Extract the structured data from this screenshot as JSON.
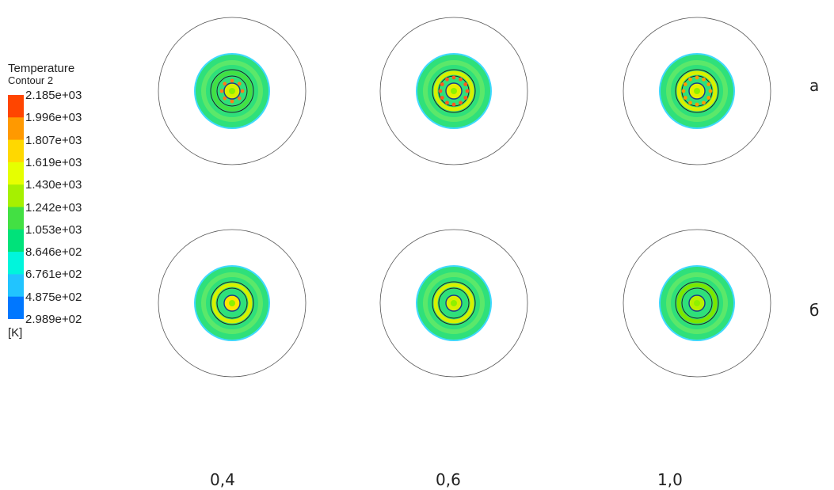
{
  "legend": {
    "title": "Temperature",
    "subtitle": "Contour 2",
    "unit": "[K]",
    "ticks": [
      "2.185e+03",
      "1.996e+03",
      "1.807e+03",
      "1.619e+03",
      "1.430e+03",
      "1.242e+03",
      "1.053e+03",
      "8.646e+02",
      "6.761e+02",
      "4.875e+02",
      "2.989e+02"
    ],
    "colors": [
      "#ff4500",
      "#ff9900",
      "#ffd800",
      "#e6ff00",
      "#a6f000",
      "#43e043",
      "#00e27a",
      "#00f5dc",
      "#21c4ff",
      "#0077ff",
      "#0019d6"
    ]
  },
  "rows": [
    {
      "label": "а"
    },
    {
      "label": "б"
    }
  ],
  "columns": [
    {
      "label": "0,4"
    },
    {
      "label": "0,6"
    },
    {
      "label": "1,0"
    }
  ],
  "plots": [
    {
      "id": "a-04",
      "hot": "speckled",
      "core": "#d8f000"
    },
    {
      "id": "a-06",
      "hot": "red-ring",
      "core": "#e6f000"
    },
    {
      "id": "a-10",
      "hot": "orange-ring",
      "core": "#e6f000"
    },
    {
      "id": "b-04",
      "hot": "yellow",
      "core": "#ffe600"
    },
    {
      "id": "b-06",
      "hot": "yellow",
      "core": "#d8f000"
    },
    {
      "id": "b-10",
      "hot": "green",
      "core": "#b8f000"
    }
  ]
}
